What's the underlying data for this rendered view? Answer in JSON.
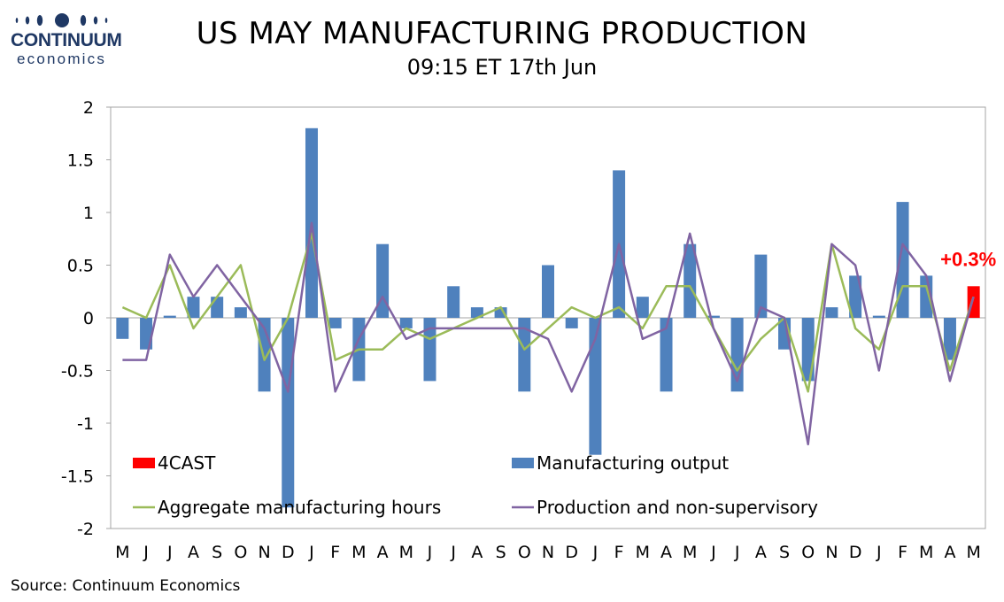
{
  "logo": {
    "brand": "CONTINUUM",
    "sub": "economics",
    "color": "#1f3864"
  },
  "header": {
    "title": "US MAY MANUFACTURING PRODUCTION",
    "subtitle": "09:15 ET 17th Jun"
  },
  "source": "Source: Continuum Economics",
  "forecast_label": "+0.3%",
  "chart_data": {
    "type": "bar",
    "categories": [
      "M",
      "J",
      "J",
      "A",
      "S",
      "O",
      "N",
      "D",
      "J",
      "F",
      "M",
      "A",
      "M",
      "J",
      "J",
      "A",
      "S",
      "O",
      "N",
      "D",
      "J",
      "F",
      "M",
      "A",
      "M",
      "J",
      "J",
      "A",
      "S",
      "O",
      "N",
      "D",
      "J",
      "F",
      "M",
      "A",
      "M"
    ],
    "ylim": [
      -2,
      2
    ],
    "yticks": [
      "2",
      "1.5",
      "1",
      "0.5",
      "0",
      "-0.5",
      "-1",
      "-1.5",
      "-2"
    ],
    "ytick_values": [
      2,
      1.5,
      1,
      0.5,
      0,
      -0.5,
      -1,
      -1.5,
      -2
    ],
    "grid": false,
    "legend": "inside-bottom",
    "series": [
      {
        "name": "Manufacturing output",
        "kind": "bar",
        "color": "#4f81bd",
        "values": [
          -0.2,
          -0.3,
          0.02,
          0.2,
          0.2,
          0.1,
          -0.7,
          -1.8,
          1.8,
          -0.1,
          -0.6,
          0.7,
          -0.1,
          -0.6,
          0.3,
          0.1,
          0.1,
          -0.7,
          0.5,
          -0.1,
          -1.3,
          1.4,
          0.2,
          -0.7,
          0.7,
          0.02,
          -0.7,
          0.6,
          -0.3,
          -0.6,
          0.1,
          0.4,
          0.02,
          1.1,
          0.4,
          -0.4,
          null
        ]
      },
      {
        "name": "4CAST",
        "kind": "bar",
        "color": "#ff0000",
        "values": [
          null,
          null,
          null,
          null,
          null,
          null,
          null,
          null,
          null,
          null,
          null,
          null,
          null,
          null,
          null,
          null,
          null,
          null,
          null,
          null,
          null,
          null,
          null,
          null,
          null,
          null,
          null,
          null,
          null,
          null,
          null,
          null,
          null,
          null,
          null,
          null,
          0.3
        ]
      },
      {
        "name": "Aggregate manufacturing hours",
        "kind": "line",
        "color": "#9bbb59",
        "values": [
          0.1,
          0.0,
          0.5,
          -0.1,
          0.2,
          0.5,
          -0.4,
          0.0,
          0.8,
          -0.4,
          -0.3,
          -0.3,
          -0.1,
          -0.2,
          -0.1,
          0.0,
          0.1,
          -0.3,
          -0.1,
          0.1,
          0.0,
          0.1,
          -0.1,
          0.3,
          0.3,
          -0.1,
          -0.5,
          -0.2,
          0.0,
          -0.7,
          0.7,
          -0.1,
          -0.3,
          0.3,
          0.3,
          -0.5,
          0.2
        ]
      },
      {
        "name": "Production and non-supervisory",
        "kind": "line",
        "color": "#8064a2",
        "values": [
          -0.4,
          -0.4,
          0.6,
          0.2,
          0.5,
          0.2,
          -0.1,
          -0.7,
          0.9,
          -0.7,
          -0.2,
          0.2,
          -0.2,
          -0.1,
          -0.1,
          -0.1,
          -0.1,
          -0.1,
          -0.2,
          -0.7,
          -0.2,
          0.7,
          -0.2,
          -0.1,
          0.8,
          -0.1,
          -0.6,
          0.1,
          0.0,
          -1.2,
          0.7,
          0.5,
          -0.5,
          0.7,
          0.4,
          -0.6,
          0.2
        ]
      }
    ]
  }
}
